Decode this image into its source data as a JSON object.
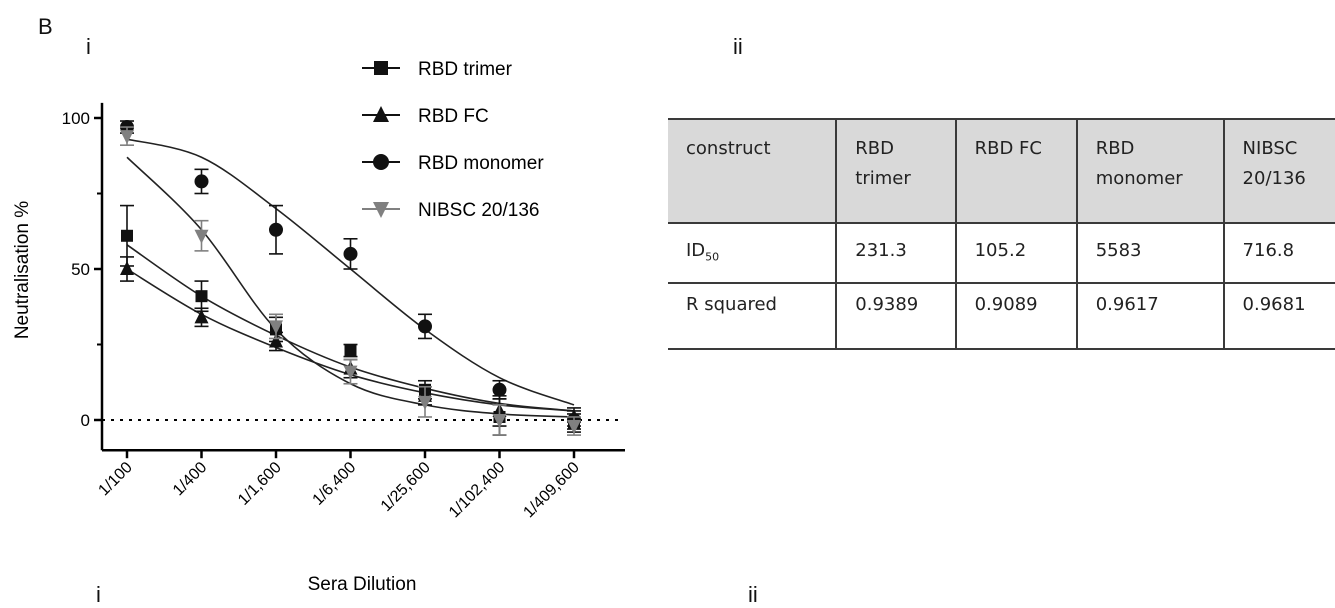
{
  "labels": {
    "panel": "B",
    "sub_i": "i",
    "sub_ii": "ii",
    "sub_i_bottom": "i",
    "sub_ii_bottom": "ii"
  },
  "chart_data": {
    "type": "line",
    "xlabel": "Sera Dilution",
    "ylabel": "Neutralisation %",
    "categories": [
      "1/100",
      "1/400",
      "1/1,600",
      "1/6,400",
      "1/25,600",
      "1/102,400",
      "1/409,600"
    ],
    "yticks": [
      "0",
      "50",
      "100"
    ],
    "ylim": [
      -10,
      105
    ],
    "reference_line": {
      "y": 0,
      "style": "dotted"
    },
    "legend_position": "top-center",
    "series": [
      {
        "name": "RBD trimer",
        "marker": "square",
        "color": "#111111",
        "values": [
          61,
          41,
          30,
          23,
          10,
          1,
          -1
        ],
        "errors": [
          10,
          5,
          4,
          2,
          3,
          6,
          3
        ],
        "fit": [
          58,
          41,
          28,
          17.5,
          10.5,
          5.5,
          3
        ]
      },
      {
        "name": "RBD FC",
        "marker": "triangle",
        "color": "#111111",
        "values": [
          50,
          34,
          26,
          17,
          8,
          3,
          1
        ],
        "errors": [
          4,
          3,
          3,
          3,
          3,
          5,
          3
        ],
        "fit": [
          50,
          35,
          24,
          15,
          9,
          5,
          3
        ]
      },
      {
        "name": "RBD monomer",
        "marker": "circle",
        "color": "#111111",
        "values": [
          97,
          79,
          63,
          55,
          31,
          10,
          0
        ],
        "errors": [
          2,
          4,
          8,
          5,
          4,
          3,
          3
        ],
        "fit": [
          93,
          87,
          70,
          50,
          30,
          14,
          5
        ]
      },
      {
        "name": "NIBSC 20/136",
        "marker": "triangle-down",
        "color": "#808080",
        "values": [
          94,
          61,
          31,
          16,
          6,
          0,
          -2
        ],
        "errors": [
          3,
          5,
          4,
          4,
          5,
          5,
          3
        ],
        "fit": [
          87,
          63,
          30,
          12,
          5,
          2,
          1
        ]
      }
    ]
  },
  "table": {
    "headers": [
      {
        "line1": "construct",
        "line2": ""
      },
      {
        "line1": "RBD",
        "line2": "trimer"
      },
      {
        "line1": "RBD FC",
        "line2": ""
      },
      {
        "line1": "RBD",
        "line2": "monomer"
      },
      {
        "line1": "NIBSC",
        "line2": "20/136"
      }
    ],
    "rows": [
      {
        "label_main": "ID",
        "label_sub": "50",
        "values": [
          "231.3",
          "105.2",
          "5583",
          "716.8"
        ]
      },
      {
        "label_main": "R squared",
        "label_sub": "",
        "values": [
          "0.9389",
          "0.9089",
          "0.9617",
          "0.9681"
        ]
      }
    ]
  }
}
